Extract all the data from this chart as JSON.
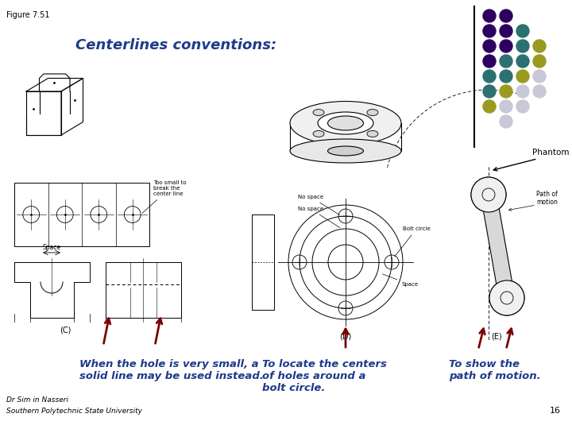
{
  "figure_label": "Figure 7.51",
  "title": "Centerlines conventions:",
  "title_color": "#1E3A8A",
  "title_fontsize": 13,
  "bg_color": "#FFFFFF",
  "phantom_label": "Phantom lines",
  "caption1": "When the hole is very small, a\nsolid line may be used instead.",
  "caption2": "To locate the centers\nof holes around a\nbolt circle.",
  "caption3": "To show the\npath of motion.",
  "caption_color": "#1E3A8A",
  "caption_fontsize": 9.5,
  "footer_line1": "Dr Sim in Nasseri",
  "footer_line2": "Southern Polytechnic State University",
  "page_number": "16",
  "dot_colors_grid": [
    [
      "#2D0060",
      "#2D0060",
      null,
      null
    ],
    [
      "#2D0060",
      "#2D0060",
      "#2D7070",
      null
    ],
    [
      "#2D0060",
      "#2D0060",
      "#2D7070",
      "#9A9A20"
    ],
    [
      "#2D0060",
      "#2D7070",
      "#2D7070",
      "#9A9A20"
    ],
    [
      "#2D7070",
      "#2D7070",
      "#9A9A20",
      "#C8C8D8"
    ],
    [
      "#2D7070",
      "#9A9A20",
      "#C8C8D8",
      "#C8C8D8"
    ],
    [
      "#9A9A20",
      "#C8C8D8",
      "#C8C8D8",
      null
    ],
    [
      null,
      "#C8C8D8",
      null,
      null
    ]
  ]
}
